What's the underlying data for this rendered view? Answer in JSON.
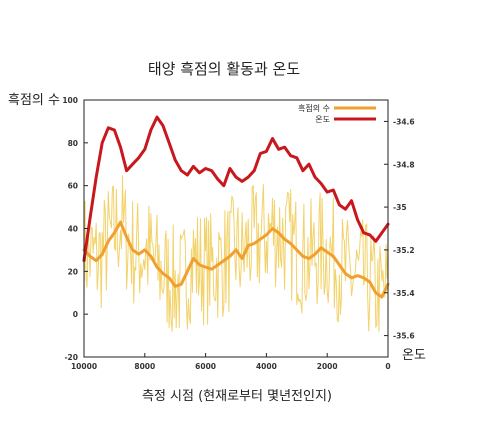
{
  "chart_data": {
    "type": "line",
    "title": "태양 흑점의 활동과 온도",
    "xlabel": "측정 시점 (현재로부터 몇년전인지)",
    "ylabel": "흑점의 수",
    "y2label": "온도",
    "xlim": [
      10000,
      0
    ],
    "ylim": [
      -20,
      100
    ],
    "y2lim": [
      -35.7,
      -34.5
    ],
    "x_ticks": [
      10000,
      8000,
      6000,
      4000,
      2000,
      0
    ],
    "y_ticks": [
      -20,
      0,
      20,
      40,
      60,
      80,
      100
    ],
    "y2_ticks": [
      -35.6,
      -35.4,
      -35.2,
      -35,
      -34.8,
      -34.6
    ],
    "legend_position": "top-right",
    "colors": {
      "sunspot_raw": "#f2d26a",
      "sunspot": "#f0a030",
      "temperature": "#c8181e"
    },
    "series": [
      {
        "name": "흑점의 수",
        "axis": "left",
        "x": [
          10000,
          9800,
          9600,
          9400,
          9200,
          9000,
          8800,
          8600,
          8400,
          8200,
          8000,
          7800,
          7600,
          7400,
          7200,
          7000,
          6800,
          6600,
          6400,
          6200,
          6000,
          5800,
          5600,
          5400,
          5200,
          5000,
          4800,
          4600,
          4400,
          4200,
          4000,
          3800,
          3600,
          3400,
          3200,
          3000,
          2800,
          2600,
          2400,
          2200,
          2000,
          1800,
          1600,
          1400,
          1200,
          1000,
          800,
          600,
          400,
          200,
          0
        ],
        "values": [
          30,
          27,
          25,
          28,
          34,
          38,
          43,
          36,
          30,
          28,
          30,
          27,
          22,
          19,
          17,
          13,
          14,
          20,
          26,
          23,
          22,
          21,
          23,
          25,
          27,
          30,
          26,
          32,
          33,
          35,
          37,
          40,
          38,
          35,
          33,
          30,
          27,
          26,
          28,
          31,
          29,
          27,
          23,
          19,
          17,
          18,
          17,
          15,
          10,
          8,
          14
        ]
      },
      {
        "name": "온도",
        "axis": "right",
        "x": [
          10000,
          9800,
          9600,
          9400,
          9200,
          9000,
          8800,
          8600,
          8400,
          8200,
          8000,
          7800,
          7600,
          7400,
          7200,
          7000,
          6800,
          6600,
          6400,
          6200,
          6000,
          5800,
          5600,
          5400,
          5200,
          5000,
          4800,
          4600,
          4400,
          4200,
          4000,
          3800,
          3600,
          3400,
          3200,
          3000,
          2800,
          2600,
          2400,
          2200,
          2000,
          1800,
          1600,
          1400,
          1200,
          1000,
          800,
          600,
          400,
          200,
          0
        ],
        "values": [
          -35.25,
          -35.05,
          -34.86,
          -34.7,
          -34.63,
          -34.64,
          -34.72,
          -34.83,
          -34.8,
          -34.77,
          -34.73,
          -34.64,
          -34.58,
          -34.62,
          -34.7,
          -34.78,
          -34.83,
          -34.85,
          -34.81,
          -34.84,
          -34.82,
          -34.83,
          -34.87,
          -34.9,
          -34.82,
          -34.86,
          -34.88,
          -34.86,
          -34.83,
          -34.75,
          -34.74,
          -34.68,
          -34.73,
          -34.72,
          -34.76,
          -34.77,
          -34.83,
          -34.8,
          -34.86,
          -34.89,
          -34.93,
          -34.92,
          -34.99,
          -35.01,
          -34.97,
          -35.06,
          -35.12,
          -35.13,
          -35.16,
          -35.12,
          -35.08
        ]
      }
    ]
  }
}
